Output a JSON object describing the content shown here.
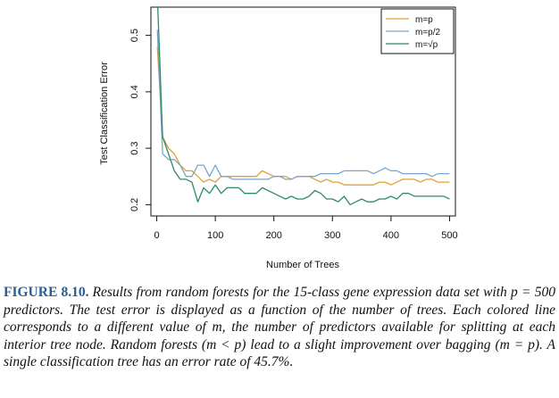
{
  "chart_data": {
    "type": "line",
    "title": "",
    "xlabel": "Number of Trees",
    "ylabel": "Test Classification Error",
    "xlim": [
      -10,
      510
    ],
    "ylim": [
      0.18,
      0.55
    ],
    "xticks": [
      0,
      100,
      200,
      300,
      400,
      500
    ],
    "xtick_labels": [
      "0",
      "100",
      "200",
      "300",
      "400",
      "500"
    ],
    "yticks": [
      0.2,
      0.3,
      0.4,
      0.5
    ],
    "ytick_labels": [
      "0.2",
      "0.3",
      "0.4",
      "0.5"
    ],
    "grid": false,
    "legend_position": "top-right",
    "series": [
      {
        "name": "m=p",
        "color": "#e0a030",
        "x": [
          1,
          10,
          20,
          30,
          40,
          50,
          60,
          70,
          80,
          90,
          100,
          110,
          120,
          130,
          140,
          150,
          160,
          170,
          180,
          190,
          200,
          210,
          220,
          230,
          240,
          250,
          260,
          270,
          280,
          290,
          300,
          310,
          320,
          330,
          340,
          350,
          360,
          370,
          380,
          390,
          400,
          410,
          420,
          430,
          440,
          450,
          460,
          470,
          480,
          490,
          500
        ],
        "values": [
          0.48,
          0.32,
          0.3,
          0.29,
          0.27,
          0.26,
          0.26,
          0.25,
          0.24,
          0.245,
          0.24,
          0.25,
          0.25,
          0.25,
          0.25,
          0.25,
          0.25,
          0.25,
          0.26,
          0.255,
          0.25,
          0.25,
          0.25,
          0.245,
          0.25,
          0.25,
          0.25,
          0.245,
          0.24,
          0.245,
          0.24,
          0.24,
          0.235,
          0.235,
          0.235,
          0.235,
          0.235,
          0.235,
          0.24,
          0.24,
          0.235,
          0.24,
          0.245,
          0.245,
          0.245,
          0.24,
          0.245,
          0.245,
          0.24,
          0.24,
          0.24
        ]
      },
      {
        "name": "m=p/2",
        "color": "#7aa6c9",
        "x": [
          1,
          10,
          20,
          30,
          40,
          50,
          60,
          70,
          80,
          90,
          100,
          110,
          120,
          130,
          140,
          150,
          160,
          170,
          180,
          190,
          200,
          210,
          220,
          230,
          240,
          250,
          260,
          270,
          280,
          290,
          300,
          310,
          320,
          330,
          340,
          350,
          360,
          370,
          380,
          390,
          400,
          410,
          420,
          430,
          440,
          450,
          460,
          470,
          480,
          490,
          500
        ],
        "values": [
          0.51,
          0.29,
          0.28,
          0.28,
          0.27,
          0.25,
          0.25,
          0.27,
          0.27,
          0.25,
          0.27,
          0.25,
          0.25,
          0.245,
          0.245,
          0.245,
          0.245,
          0.245,
          0.245,
          0.245,
          0.25,
          0.25,
          0.245,
          0.245,
          0.25,
          0.25,
          0.25,
          0.25,
          0.255,
          0.255,
          0.255,
          0.255,
          0.26,
          0.26,
          0.26,
          0.26,
          0.26,
          0.255,
          0.26,
          0.265,
          0.26,
          0.26,
          0.255,
          0.255,
          0.255,
          0.255,
          0.255,
          0.25,
          0.255,
          0.255,
          0.255
        ]
      },
      {
        "name": "m=√p",
        "color": "#2e8b6a",
        "x": [
          1,
          10,
          20,
          30,
          40,
          50,
          60,
          70,
          80,
          90,
          100,
          110,
          120,
          130,
          140,
          150,
          160,
          170,
          180,
          190,
          200,
          210,
          220,
          230,
          240,
          250,
          260,
          270,
          280,
          290,
          300,
          310,
          320,
          330,
          340,
          350,
          360,
          370,
          380,
          390,
          400,
          410,
          420,
          430,
          440,
          450,
          460,
          470,
          480,
          490,
          500
        ],
        "values": [
          0.57,
          0.32,
          0.29,
          0.26,
          0.245,
          0.245,
          0.24,
          0.205,
          0.23,
          0.22,
          0.235,
          0.22,
          0.23,
          0.23,
          0.23,
          0.22,
          0.22,
          0.22,
          0.23,
          0.225,
          0.22,
          0.215,
          0.21,
          0.215,
          0.21,
          0.21,
          0.215,
          0.225,
          0.22,
          0.21,
          0.21,
          0.205,
          0.215,
          0.2,
          0.205,
          0.21,
          0.205,
          0.205,
          0.21,
          0.21,
          0.215,
          0.21,
          0.22,
          0.22,
          0.215,
          0.215,
          0.215,
          0.215,
          0.215,
          0.215,
          0.21
        ]
      }
    ]
  },
  "caption": {
    "label": "FIGURE 8.10.",
    "text": "Results from random forests for the 15-class gene expression data set with p = 500 predictors. The test error is displayed as a function of the number of trees. Each colored line corresponds to a different value of m, the number of predictors available for splitting at each interior tree node. Random forests (m < p) lead to a slight improvement over bagging (m = p). A single classification tree has an error rate of 45.7%."
  }
}
